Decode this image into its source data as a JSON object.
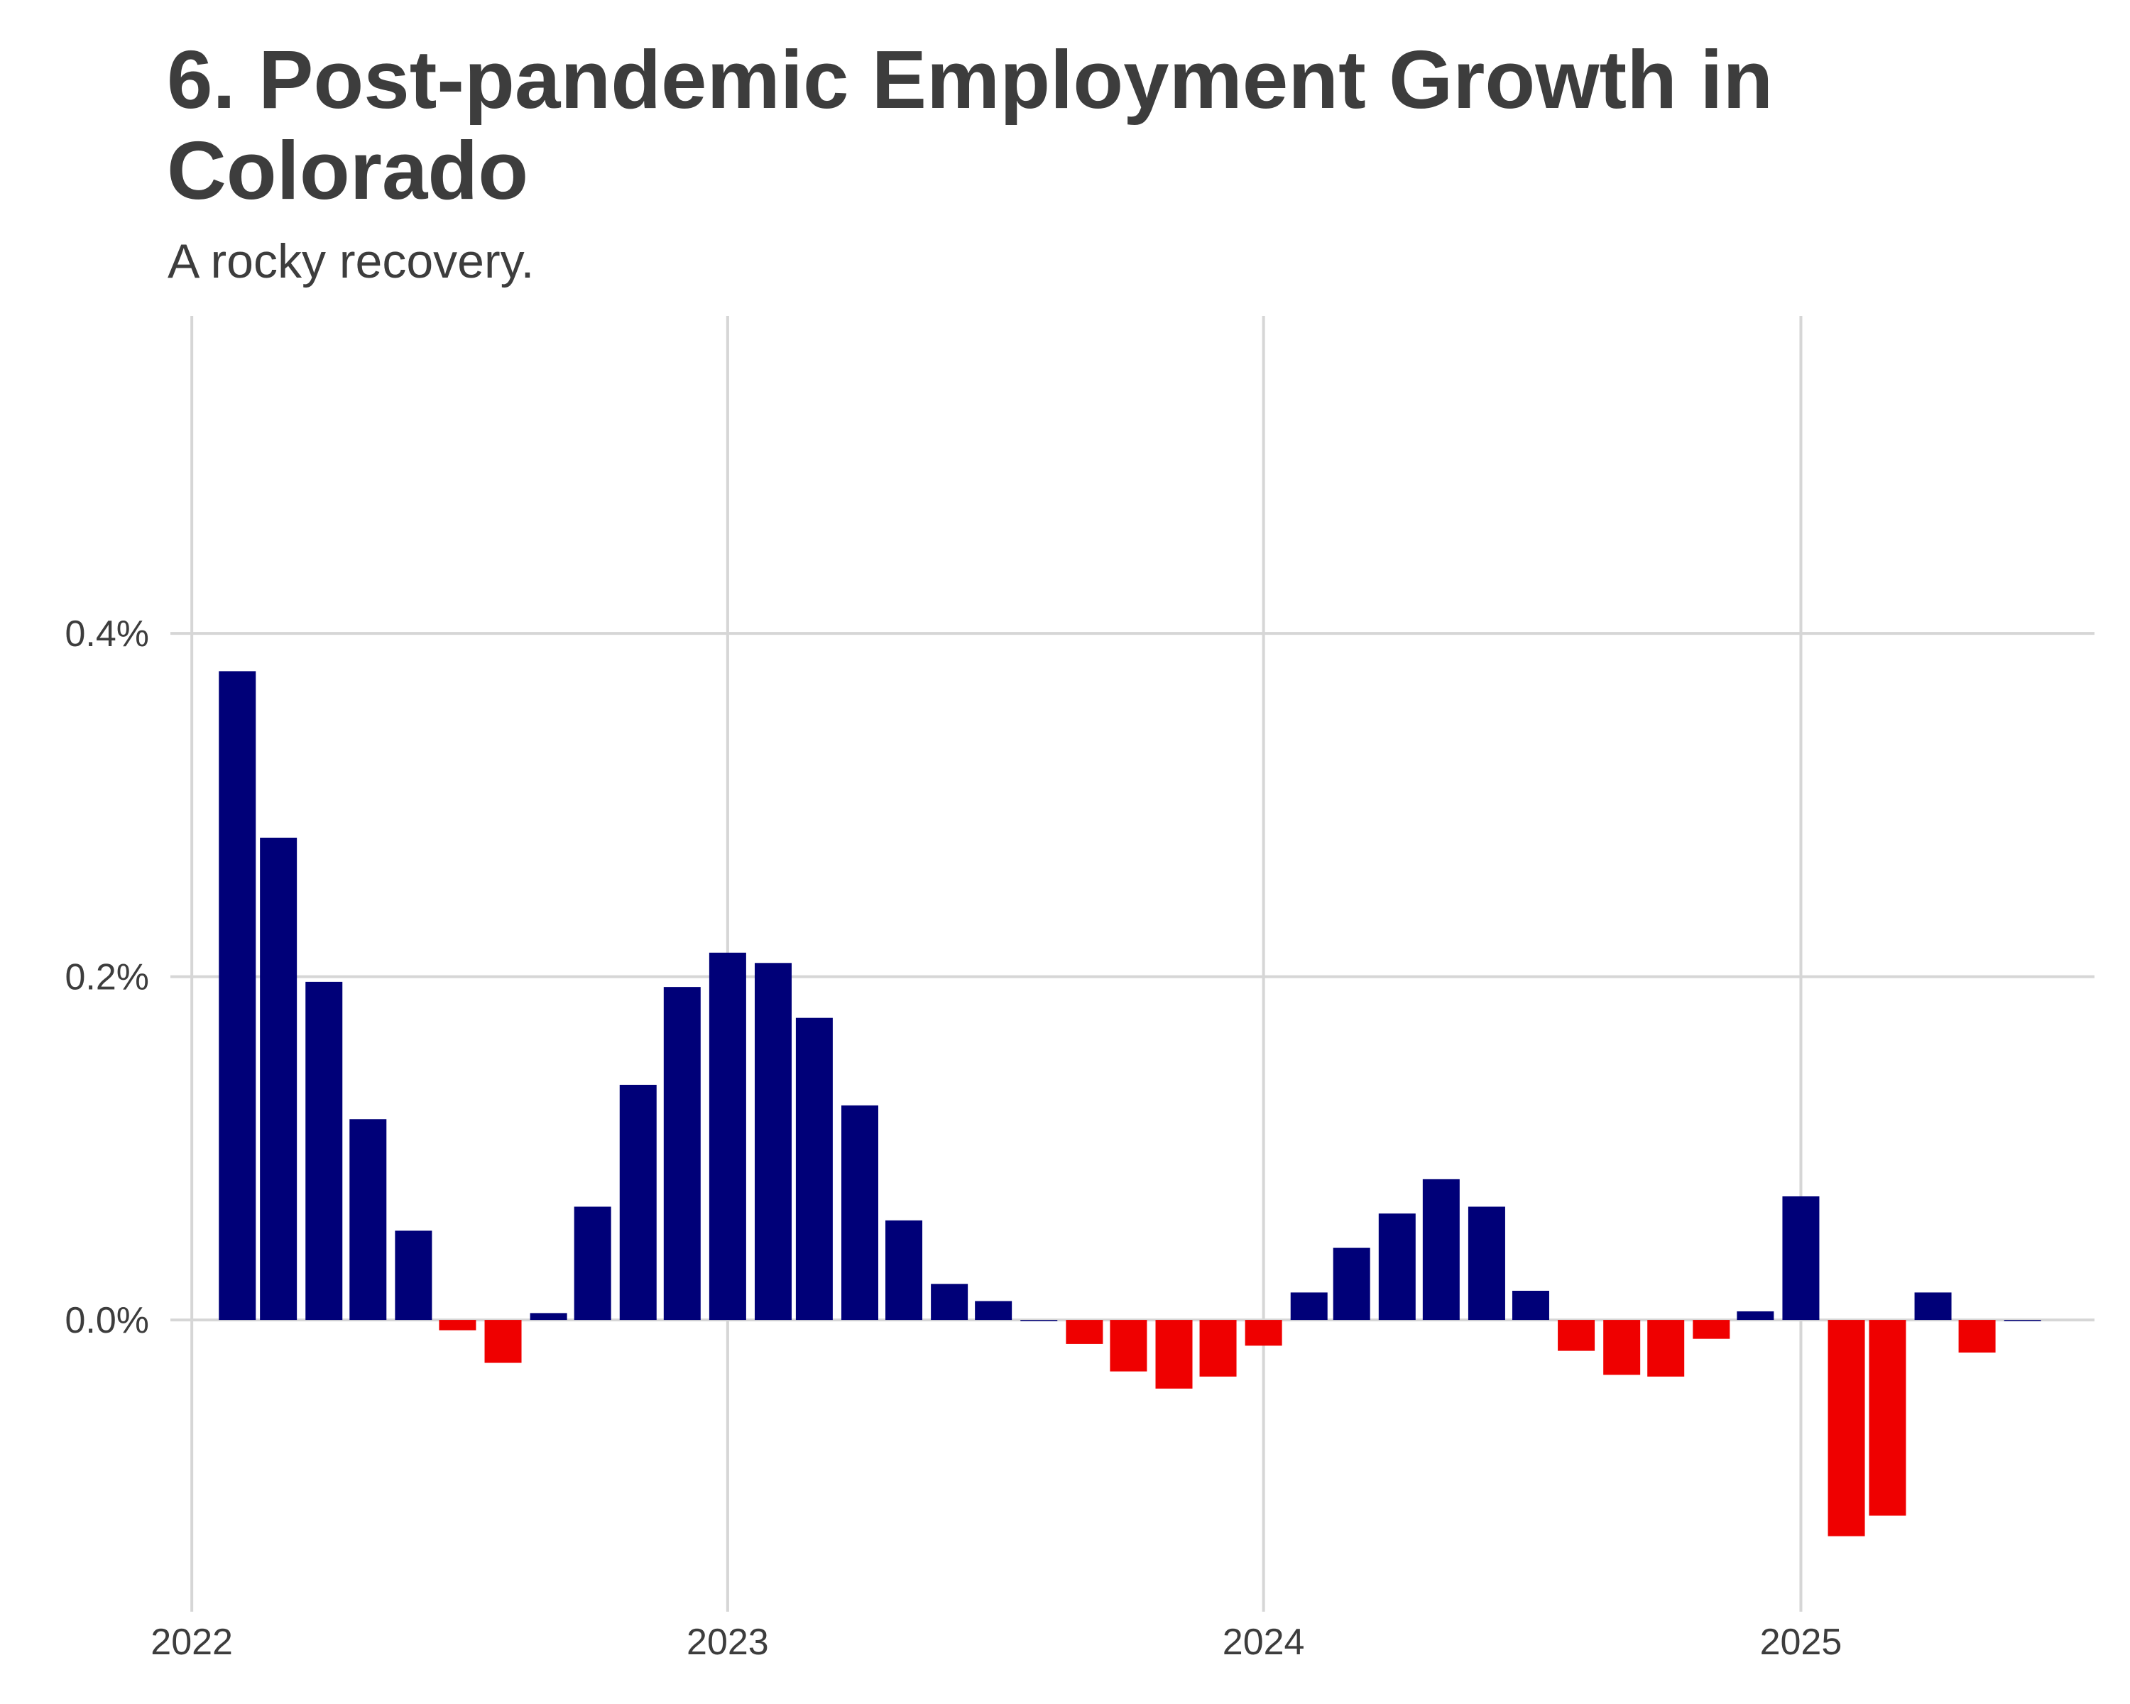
{
  "chart_data": {
    "type": "bar",
    "title": "6. Post-pandemic Employment Growth in Colorado",
    "subtitle": "A rocky recovery.",
    "xlabel": "",
    "ylabel": "",
    "x_ticks": [
      "2022",
      "2023",
      "2024",
      "2025"
    ],
    "y_ticks": [
      "0.0%",
      "0.2%",
      "0.4%"
    ],
    "ylim": [
      -0.17,
      0.585
    ],
    "xlim": [
      "2021-12-15",
      "2025-07-20"
    ],
    "grid": true,
    "legend": "none",
    "colors": {
      "positive": "#000078",
      "negative": "#ef0000",
      "grid": "#d6d6d6",
      "text": "#3d3d3d"
    },
    "series": [
      {
        "x": [
          "2022-02",
          "2022-03",
          "2022-04",
          "2022-05",
          "2022-06",
          "2022-07",
          "2022-08",
          "2022-09",
          "2022-10",
          "2022-11",
          "2022-12",
          "2023-01",
          "2023-02",
          "2023-03",
          "2023-04",
          "2023-05",
          "2023-06",
          "2023-07",
          "2023-08",
          "2023-09",
          "2023-10",
          "2023-11",
          "2023-12",
          "2024-01",
          "2024-02",
          "2024-03",
          "2024-04",
          "2024-05",
          "2024-06",
          "2024-07",
          "2024-08",
          "2024-09",
          "2024-10",
          "2024-11",
          "2024-12",
          "2025-01",
          "2025-02",
          "2025-03",
          "2025-04",
          "2025-05",
          "2025-06"
        ],
        "values": [
          0.378,
          0.281,
          0.197,
          0.117,
          0.052,
          -0.006,
          -0.025,
          0.004,
          0.066,
          0.137,
          0.194,
          0.214,
          0.208,
          0.176,
          0.125,
          0.058,
          0.021,
          0.011,
          0.0,
          -0.014,
          -0.03,
          -0.04,
          -0.033,
          -0.015,
          0.016,
          0.042,
          0.062,
          0.082,
          0.066,
          0.017,
          -0.018,
          -0.032,
          -0.033,
          -0.011,
          0.005,
          0.072,
          -0.126,
          -0.114,
          0.016,
          -0.019,
          0.0
        ]
      }
    ]
  }
}
